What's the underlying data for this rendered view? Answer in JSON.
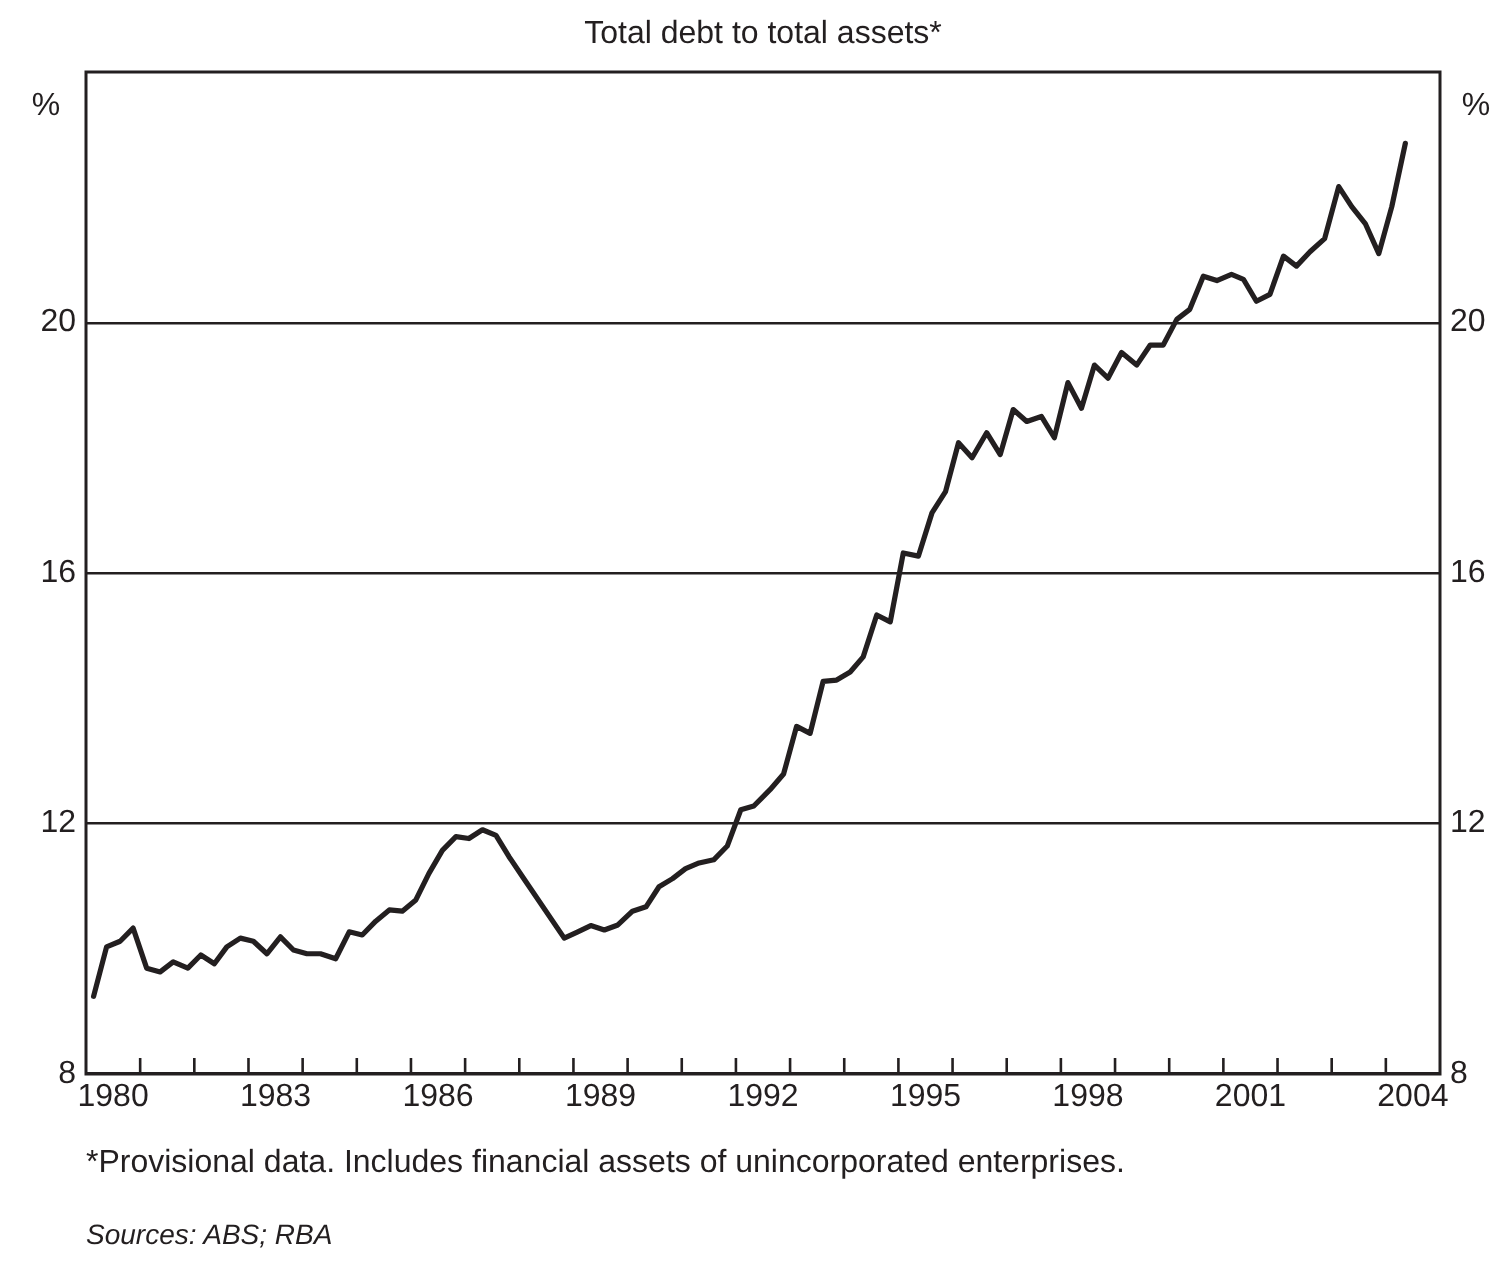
{
  "chart_data": {
    "type": "line",
    "title": "Total debt to total assets*",
    "ylabel": "%",
    "y2label": "%",
    "annotations": [
      "*Provisional data. Includes financial assets of unincorporated enterprises.",
      "Sources: ABS; RBA"
    ],
    "xlim": [
      1980,
      2005
    ],
    "xticks": [
      {
        "value": 1980.5,
        "label": "1980"
      },
      {
        "value": 1981,
        "label": null
      },
      {
        "value": 1982,
        "label": null
      },
      {
        "value": 1983,
        "label": null
      },
      {
        "value": 1983.5,
        "label": "1983"
      },
      {
        "value": 1984,
        "label": null
      },
      {
        "value": 1985,
        "label": null
      },
      {
        "value": 1986,
        "label": null
      },
      {
        "value": 1986.5,
        "label": "1986"
      },
      {
        "value": 1987,
        "label": null
      },
      {
        "value": 1988,
        "label": null
      },
      {
        "value": 1989,
        "label": null
      },
      {
        "value": 1989.5,
        "label": "1989"
      },
      {
        "value": 1990,
        "label": null
      },
      {
        "value": 1991,
        "label": null
      },
      {
        "value": 1992,
        "label": null
      },
      {
        "value": 1992.5,
        "label": "1992"
      },
      {
        "value": 1993,
        "label": null
      },
      {
        "value": 1994,
        "label": null
      },
      {
        "value": 1995,
        "label": null
      },
      {
        "value": 1995.5,
        "label": "1995"
      },
      {
        "value": 1996,
        "label": null
      },
      {
        "value": 1997,
        "label": null
      },
      {
        "value": 1998,
        "label": null
      },
      {
        "value": 1998.5,
        "label": "1998"
      },
      {
        "value": 1999,
        "label": null
      },
      {
        "value": 2000,
        "label": null
      },
      {
        "value": 2001,
        "label": null
      },
      {
        "value": 2001.5,
        "label": "2001"
      },
      {
        "value": 2002,
        "label": null
      },
      {
        "value": 2003,
        "label": null
      },
      {
        "value": 2004,
        "label": null
      },
      {
        "value": 2004.5,
        "label": "2004"
      }
    ],
    "ylim": [
      8,
      24
    ],
    "yticks": [
      8,
      12,
      16,
      20
    ],
    "y2lim": [
      8,
      24
    ],
    "y2ticks": [
      8,
      12,
      16,
      20
    ],
    "grid": "y",
    "marker": "none",
    "line_style": "solid",
    "series": [
      {
        "color": "#231f20",
        "x": [
          1980.14,
          1980.38,
          1980.63,
          1980.87,
          1981.12,
          1981.37,
          1981.61,
          1981.88,
          1982.12,
          1982.37,
          1982.6,
          1982.85,
          1983.09,
          1983.34,
          1983.59,
          1983.83,
          1984.08,
          1984.33,
          1984.61,
          1984.86,
          1985.1,
          1985.35,
          1985.6,
          1985.84,
          1986.09,
          1986.33,
          1986.58,
          1986.83,
          1987.07,
          1987.32,
          1987.57,
          1987.81,
          1988.06,
          1988.83,
          1989.08,
          1989.32,
          1989.57,
          1989.82,
          1990.09,
          1990.34,
          1990.58,
          1990.83,
          1991.07,
          1991.32,
          1991.59,
          1991.84,
          1992.09,
          1992.33,
          1992.63,
          1992.88,
          1993.12,
          1993.37,
          1993.61,
          1993.86,
          1994.11,
          1994.35,
          1994.6,
          1994.85,
          1995.09,
          1995.37,
          1995.62,
          1995.87,
          1996.11,
          1996.36,
          1996.63,
          1996.88,
          1997.12,
          1997.37,
          1997.64,
          1997.88,
          1998.13,
          1998.38,
          1998.62,
          1998.87,
          1999.12,
          1999.4,
          1999.65,
          1999.89,
          2000.14,
          2000.38,
          2000.63,
          2000.88,
          2001.15,
          2001.37,
          2001.61,
          2001.86,
          2002.11,
          2002.35,
          2002.6,
          2002.87,
          2003.13,
          2003.37,
          2003.62,
          2003.87,
          2004.11,
          2004.36
        ],
        "values": [
          9.24,
          10.03,
          10.12,
          10.33,
          9.69,
          9.63,
          9.79,
          9.69,
          9.9,
          9.76,
          10.03,
          10.17,
          10.12,
          9.92,
          10.19,
          9.98,
          9.92,
          9.92,
          9.84,
          10.27,
          10.22,
          10.44,
          10.62,
          10.6,
          10.78,
          11.2,
          11.57,
          11.79,
          11.76,
          11.9,
          11.81,
          11.47,
          11.15,
          10.17,
          10.27,
          10.37,
          10.3,
          10.38,
          10.6,
          10.67,
          10.99,
          11.12,
          11.28,
          11.37,
          11.42,
          11.64,
          12.22,
          12.28,
          12.54,
          12.79,
          13.55,
          13.44,
          14.27,
          14.29,
          14.42,
          14.66,
          15.33,
          15.22,
          16.32,
          16.27,
          16.96,
          17.3,
          18.08,
          17.84,
          18.24,
          17.89,
          18.61,
          18.42,
          18.5,
          18.16,
          19.04,
          18.63,
          19.32,
          19.11,
          19.52,
          19.32,
          19.64,
          19.64,
          20.05,
          20.21,
          20.74,
          20.67,
          20.77,
          20.69,
          20.34,
          20.45,
          21.06,
          20.9,
          21.13,
          21.34,
          22.17,
          21.85,
          21.58,
          21.1,
          21.85,
          22.86
        ]
      }
    ]
  }
}
